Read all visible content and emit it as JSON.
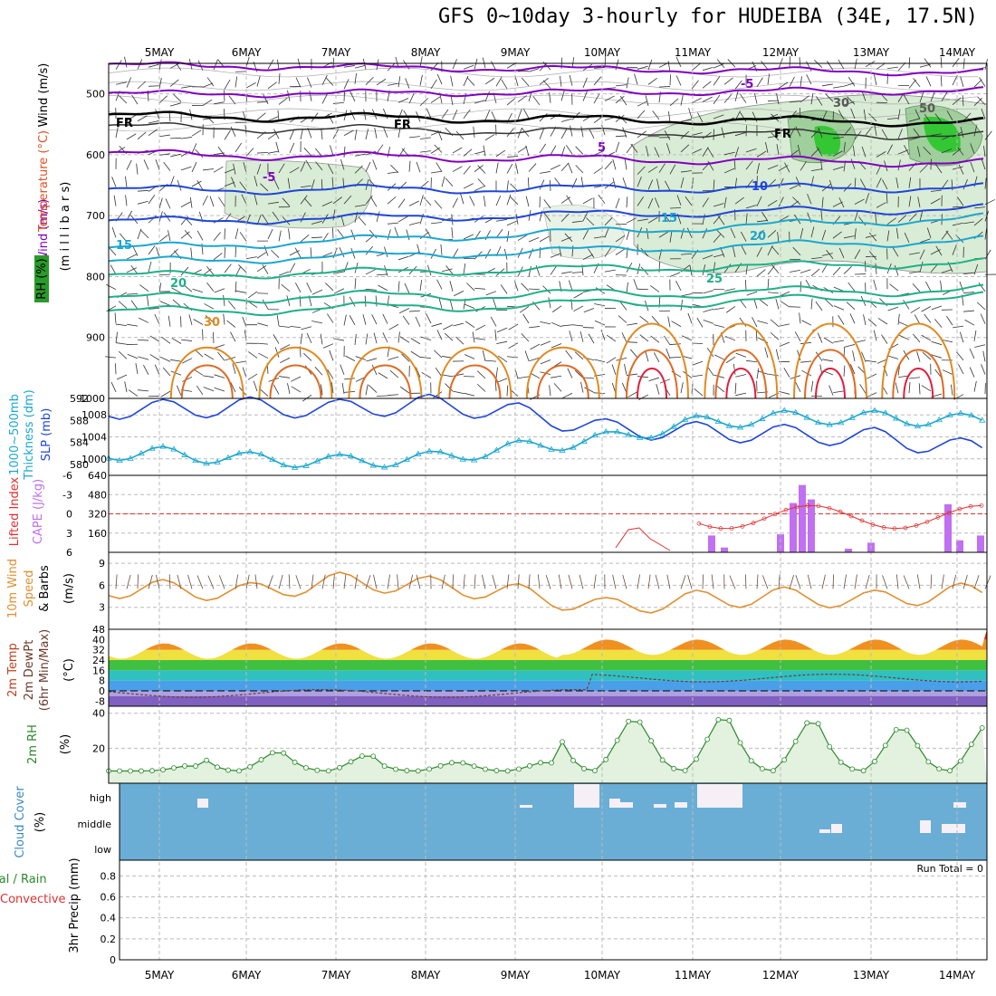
{
  "title": "GFS 0~10day 3-hourly for HUDEIBA (34E, 17.5N)",
  "days": [
    "5MAY",
    "6MAY",
    "7MAY",
    "8MAY",
    "9MAY",
    "10MAY",
    "11MAY",
    "12MAY",
    "13MAY",
    "14MAY"
  ],
  "colors": {
    "purple": "#8000c0",
    "blue": "#1f45d9",
    "cyan": "#1ba7cf",
    "teal": "#1fb089",
    "orange": "#e08a20",
    "red": "#e01f3c",
    "green": "#2a8a2a",
    "cloud": "#6aaed6",
    "cape": "#c070f0",
    "li": "#e03030",
    "wind10": "#e09030"
  },
  "panels": {
    "upper": {
      "ylabel": "(m i l l i b a r s)",
      "legend_wind": "Wind (m/s)",
      "legend_temp": "Temperature (°C)",
      "legend_rh": "RH (%)",
      "yticks": [
        "500",
        "600",
        "700",
        "800",
        "900",
        "1000"
      ],
      "labels": [
        "-5",
        "5",
        "-5",
        "10",
        "15",
        "15",
        "20",
        "20",
        "25",
        "30",
        "30",
        "50",
        "FR",
        "FR",
        "FR"
      ]
    },
    "thickness": {
      "ylabel1": "1000~500mb",
      "ylabel2": "Thickness (dm)",
      "ylabel3": "SLP (mb)",
      "yticks_left": [
        "592",
        "588",
        "584",
        "580"
      ],
      "yticks_right": [
        "1008",
        "1004",
        "1000"
      ]
    },
    "cape": {
      "ylabel1": "Lifted Index",
      "ylabel2": "CAPE (J/kg)",
      "yticks_left": [
        "-6",
        "-3",
        "0",
        "3",
        "6"
      ],
      "yticks_right": [
        "640",
        "480",
        "320",
        "160"
      ]
    },
    "wind10": {
      "ylabel1": "10m Wind",
      "ylabel2": "Speed",
      "ylabel3": "& Barbs",
      "unit": "(m/s)",
      "yticks": [
        "9",
        "6",
        "3"
      ]
    },
    "temp2m": {
      "ylabel1": "2m Temp",
      "ylabel2": "2m DewPt",
      "ylabel3": "(6hr Min/Max)",
      "unit": "(°C)",
      "yticks": [
        "48",
        "40",
        "32",
        "24",
        "16",
        "8",
        "0",
        "-8"
      ]
    },
    "rh2m": {
      "ylabel": "2m RH",
      "unit": "(%)",
      "yticks": [
        "40",
        "20"
      ]
    },
    "cloud": {
      "ylabel": "Cloud Cover",
      "unit": "(%)",
      "levels": [
        "high",
        "middle",
        "low"
      ]
    },
    "precip": {
      "ylabel1": "Total / Rain",
      "ylabel2": "Convective",
      "ylabel3": "3hr Precip (mm)",
      "yticks": [
        "0.8",
        "0.6",
        "0.4",
        "0.2",
        "0"
      ],
      "run_total": "Run Total = 0"
    }
  },
  "chart_data": [
    {
      "type": "line",
      "title": "1000~500mb Thickness (dm) / SLP (mb)",
      "x": [
        "5MAY",
        "6MAY",
        "7MAY",
        "8MAY",
        "9MAY",
        "10MAY",
        "11MAY",
        "12MAY",
        "13MAY",
        "14MAY"
      ],
      "series": [
        {
          "name": "SLP (mb)",
          "values": [
            1009,
            1009.5,
            1009,
            1010,
            1008.5,
            1005.5,
            1005,
            1004.5,
            1004,
            1002
          ]
        },
        {
          "name": "1000~500mb Thickness (dm)",
          "values": [
            582,
            581,
            580.5,
            581,
            583,
            584.5,
            587.5,
            588.5,
            588.5,
            588
          ]
        }
      ]
    },
    {
      "type": "bar",
      "title": "CAPE (J/kg)",
      "x": [
        "11MAY",
        "11MAY",
        "12MAY",
        "12MAY",
        "12MAY",
        "12MAY",
        "13MAY",
        "13MAY",
        "14MAY",
        "14MAY"
      ],
      "values": [
        140,
        40,
        150,
        410,
        560,
        440,
        30,
        80,
        400,
        100
      ]
    },
    {
      "type": "line",
      "title": "10m Wind Speed (m/s)",
      "x": [
        "5MAY",
        "6MAY",
        "7MAY",
        "8MAY",
        "9MAY",
        "10MAY",
        "11MAY",
        "12MAY",
        "13MAY",
        "14MAY"
      ],
      "values": [
        5.5,
        5,
        6.5,
        6,
        5,
        3,
        4,
        4.5,
        4,
        5
      ]
    },
    {
      "type": "area",
      "title": "2m RH (%)",
      "x": [
        "5MAY",
        "6MAY",
        "7MAY",
        "8MAY",
        "9MAY",
        "10MAY",
        "11MAY",
        "12MAY",
        "13MAY",
        "14MAY"
      ],
      "values": [
        10,
        18,
        16,
        12,
        12,
        37,
        38,
        36,
        32,
        33
      ]
    }
  ]
}
